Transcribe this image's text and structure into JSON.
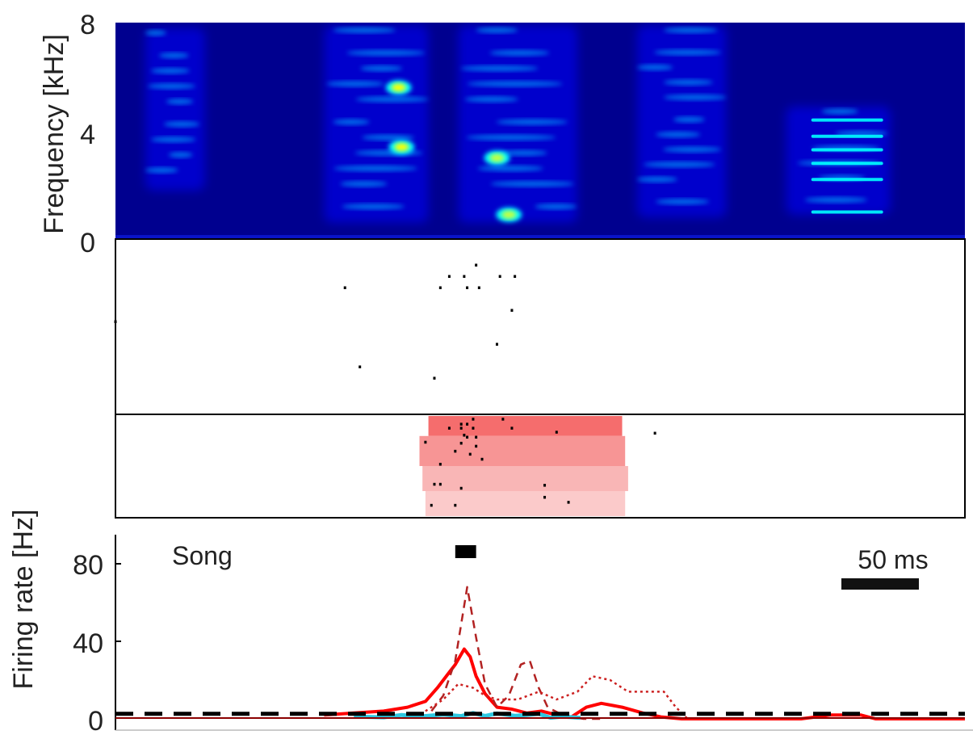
{
  "chart_data": [
    {
      "type": "heatmap",
      "panel": "spectrogram",
      "ylabel": "Frequency [kHz]",
      "ylim": [
        0,
        8
      ],
      "yticks": [
        "0",
        "4",
        "8"
      ],
      "colormap": [
        "#00008f",
        "#0000ff",
        "#00b4ff",
        "#00ffff",
        "#c8ff3c",
        "#ffff00"
      ],
      "syllables": [
        {
          "t_start_ms": 10,
          "t_end_ms": 30,
          "f_low_khz": 1.8,
          "f_high_khz": 7.8
        },
        {
          "t_start_ms": 70,
          "t_end_ms": 105,
          "f_low_khz": 0.6,
          "f_high_khz": 7.9
        },
        {
          "t_start_ms": 115,
          "t_end_ms": 155,
          "f_low_khz": 0.6,
          "f_high_khz": 7.9
        },
        {
          "t_start_ms": 175,
          "t_end_ms": 205,
          "f_low_khz": 0.8,
          "f_high_khz": 7.9
        },
        {
          "t_start_ms": 225,
          "t_end_ms": 260,
          "f_low_khz": 0.9,
          "f_high_khz": 4.9
        }
      ],
      "hotspots": [
        {
          "t_ms": 95,
          "f_khz": 5.6,
          "intensity": 0.95
        },
        {
          "t_ms": 96,
          "f_khz": 3.4,
          "intensity": 0.9
        },
        {
          "t_ms": 128,
          "f_khz": 3.0,
          "intensity": 0.85
        },
        {
          "t_ms": 132,
          "f_khz": 0.9,
          "intensity": 0.8
        }
      ],
      "harmonics_khz": [
        1.0,
        2.2,
        2.8,
        3.3,
        3.8,
        4.4
      ]
    },
    {
      "type": "scatter",
      "panel": "raster",
      "groups": [
        {
          "name": "",
          "spikes": [
            {
              "t_ms": 121,
              "trial": 1
            },
            {
              "t_ms": 112,
              "trial": 2
            },
            {
              "t_ms": 117,
              "trial": 2
            },
            {
              "t_ms": 129,
              "trial": 2
            },
            {
              "t_ms": 134,
              "trial": 2
            },
            {
              "t_ms": 77,
              "trial": 3
            },
            {
              "t_ms": 109,
              "trial": 3
            },
            {
              "t_ms": 118,
              "trial": 3
            },
            {
              "t_ms": 122,
              "trial": 3
            },
            {
              "t_ms": 133,
              "trial": 5
            },
            {
              "t_ms": 0,
              "trial": 6
            },
            {
              "t_ms": 128,
              "trial": 8
            },
            {
              "t_ms": 82,
              "trial": 10
            },
            {
              "t_ms": 107,
              "trial": 11
            }
          ]
        },
        {
          "name": "",
          "shading": [
            {
              "color": "#f56d6d",
              "t_start_ms": 105,
              "t_end_ms": 170,
              "trials": [
                0,
                2
              ]
            },
            {
              "color": "#f79595",
              "t_start_ms": 102,
              "t_end_ms": 171,
              "trials": [
                2,
                5
              ]
            },
            {
              "color": "#f9b6b6",
              "t_start_ms": 103,
              "t_end_ms": 172,
              "trials": [
                5,
                7.5
              ]
            },
            {
              "color": "#fbcaca",
              "t_start_ms": 104,
              "t_end_ms": 171,
              "trials": [
                7.5,
                10
              ]
            }
          ],
          "spikes": [
            {
              "t_ms": 120,
              "trial": 0.3
            },
            {
              "t_ms": 130,
              "trial": 0.3
            },
            {
              "t_ms": 116,
              "trial": 0.8
            },
            {
              "t_ms": 118,
              "trial": 0.8
            },
            {
              "t_ms": 112,
              "trial": 1.2
            },
            {
              "t_ms": 116,
              "trial": 1.2
            },
            {
              "t_ms": 120,
              "trial": 1.2
            },
            {
              "t_ms": 133,
              "trial": 1.2
            },
            {
              "t_ms": 148,
              "trial": 1.6
            },
            {
              "t_ms": 117,
              "trial": 1.9
            },
            {
              "t_ms": 118,
              "trial": 2.1
            },
            {
              "t_ms": 121,
              "trial": 2.1
            },
            {
              "t_ms": 181,
              "trial": 1.7
            },
            {
              "t_ms": 104,
              "trial": 2.6
            },
            {
              "t_ms": 116,
              "trial": 2.7
            },
            {
              "t_ms": 121,
              "trial": 3.0
            },
            {
              "t_ms": 114,
              "trial": 3.5
            },
            {
              "t_ms": 119,
              "trial": 3.8
            },
            {
              "t_ms": 123,
              "trial": 4.3
            },
            {
              "t_ms": 109,
              "trial": 4.8
            },
            {
              "t_ms": 107,
              "trial": 6.8
            },
            {
              "t_ms": 109,
              "trial": 6.8
            },
            {
              "t_ms": 116,
              "trial": 7.2
            },
            {
              "t_ms": 144,
              "trial": 6.9
            },
            {
              "t_ms": 144,
              "trial": 8.1
            },
            {
              "t_ms": 152,
              "trial": 8.6
            },
            {
              "t_ms": 106,
              "trial": 8.9
            },
            {
              "t_ms": 114,
              "trial": 8.9
            }
          ]
        }
      ]
    },
    {
      "type": "line",
      "panel": "firing-rate",
      "ylabel": "Firing rate [Hz]",
      "ylim": [
        0,
        95
      ],
      "yticks": [
        "0",
        "40",
        "80"
      ],
      "annotation": "Song",
      "scalebar_label": "50 ms",
      "scalebar_ms": 50,
      "x_range_ms": [
        0,
        285
      ],
      "song_bar_ms": [
        114,
        121
      ],
      "series": [
        {
          "name": "",
          "color": "#ff0000",
          "width": 4,
          "dash": "none",
          "x": [
            70,
            80,
            90,
            98,
            104,
            108,
            112,
            114,
            117,
            119,
            121,
            124,
            128,
            133,
            138,
            143,
            148,
            153,
            158,
            163,
            170,
            177,
            183,
            190,
            200,
            210,
            220,
            230,
            240,
            245,
            250,
            255,
            260,
            285
          ],
          "y": [
            2,
            3,
            4,
            6,
            9,
            16,
            24,
            28,
            36,
            32,
            22,
            13,
            6,
            5,
            3,
            4,
            2,
            1,
            6,
            8,
            6,
            3,
            1,
            0,
            0,
            0,
            0,
            0,
            2,
            2,
            2,
            0,
            0,
            0
          ]
        },
        {
          "name": "",
          "color": "#b22222",
          "width": 2.5,
          "dash": "10,7",
          "x": [
            106,
            110,
            114,
            118,
            121,
            124,
            128,
            132,
            136,
            139,
            142,
            145,
            150,
            157,
            163
          ],
          "y": [
            4,
            12,
            30,
            68,
            42,
            18,
            6,
            12,
            28,
            30,
            16,
            6,
            2,
            0,
            0
          ]
        },
        {
          "name": "",
          "color": "#cc2020",
          "width": 2.5,
          "dash": "3,4",
          "x": [
            104,
            110,
            115,
            120,
            124,
            128,
            135,
            142,
            148,
            155,
            160,
            166,
            172,
            178,
            184,
            188,
            192
          ],
          "y": [
            4,
            10,
            18,
            16,
            12,
            10,
            10,
            14,
            10,
            14,
            22,
            20,
            14,
            14,
            14,
            6,
            0
          ]
        },
        {
          "name": "",
          "color": "#2ec7e0",
          "width": 5,
          "dash": "none",
          "x": [
            80,
            90,
            96,
            102,
            110,
            116,
            120,
            124,
            128,
            134,
            138,
            142,
            146,
            150,
            156
          ],
          "y": [
            1.2,
            0.8,
            2,
            1.2,
            2.2,
            1.4,
            3,
            1.5,
            2.8,
            1.6,
            2,
            2.6,
            0.6,
            1.2,
            0.5
          ]
        },
        {
          "name": "",
          "color": "#000000",
          "width": 5,
          "dash": "22,14",
          "x": [
            0,
            285
          ],
          "y": [
            2.6,
            2.6
          ]
        },
        {
          "name": "",
          "color": "#8b0000",
          "width": 2,
          "dash": "none",
          "x": [
            0,
            285
          ],
          "y": [
            0.4,
            0.4
          ]
        }
      ]
    }
  ]
}
